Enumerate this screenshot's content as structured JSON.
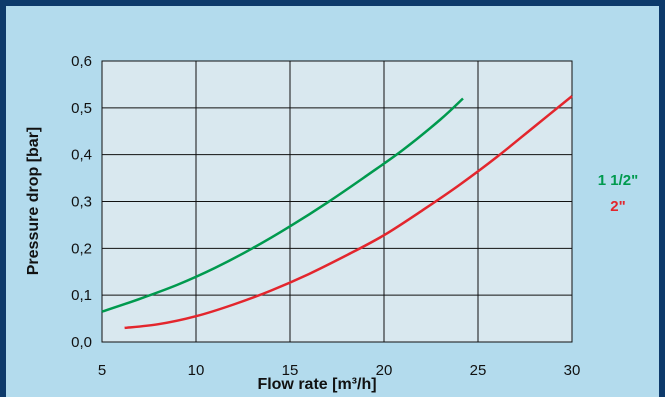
{
  "chart_data": {
    "type": "line",
    "title": "",
    "xlabel": "Flow rate [m³/h]",
    "ylabel": "Pressure drop [bar]",
    "xlim": [
      5,
      30
    ],
    "ylim": [
      0.0,
      0.6
    ],
    "x_ticks": [
      "5",
      "10",
      "15",
      "20",
      "25",
      "30"
    ],
    "y_ticks": [
      "0,0",
      "0,1",
      "0,2",
      "0,3",
      "0,4",
      "0,5",
      "0,6"
    ],
    "grid": true,
    "legend_position": "right",
    "series": [
      {
        "name": "1 1/2\"",
        "color": "#009a4e",
        "x": [
          5,
          7,
          9,
          11,
          13,
          15,
          17,
          19,
          21,
          23,
          24.2
        ],
        "y": [
          0.065,
          0.092,
          0.122,
          0.158,
          0.2,
          0.247,
          0.298,
          0.353,
          0.41,
          0.475,
          0.52
        ]
      },
      {
        "name": "2\"",
        "color": "#e3262d",
        "x": [
          6.2,
          8,
          10,
          12,
          14,
          16,
          18,
          20,
          22,
          24,
          26,
          28,
          30
        ],
        "y": [
          0.03,
          0.038,
          0.055,
          0.08,
          0.11,
          0.145,
          0.185,
          0.228,
          0.28,
          0.335,
          0.395,
          0.46,
          0.525
        ]
      }
    ]
  }
}
